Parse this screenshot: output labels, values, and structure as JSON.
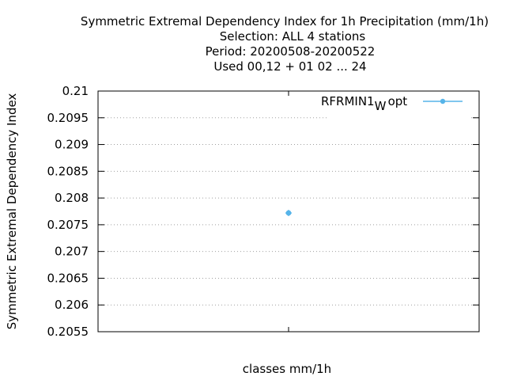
{
  "chart_data": {
    "type": "scatter",
    "title_lines": [
      "Symmetric Extremal Dependency Index  for 1h Precipitation (mm/1h)",
      "Selection: ALL      4 stations",
      "Period: 20200508-20200522",
      "Used  00,12  + 01 02 ... 24"
    ],
    "xlabel": "classes mm/1h",
    "ylabel": "Symmetric Extremal Dependency Index",
    "ylim": [
      0.2055,
      0.21
    ],
    "yticks": [
      "0.2055",
      "0.206",
      "0.2065",
      "0.207",
      "0.2075",
      "0.208",
      "0.2085",
      "0.209",
      "0.2095",
      "0.21"
    ],
    "grid": true,
    "legend_position": "top-right",
    "series": [
      {
        "name_main": "RFRMIN1",
        "name_sub": "W",
        "name_suffix": "opt",
        "color": "#56b4e9",
        "x": [
          0.5
        ],
        "values": [
          0.20772
        ]
      }
    ]
  }
}
